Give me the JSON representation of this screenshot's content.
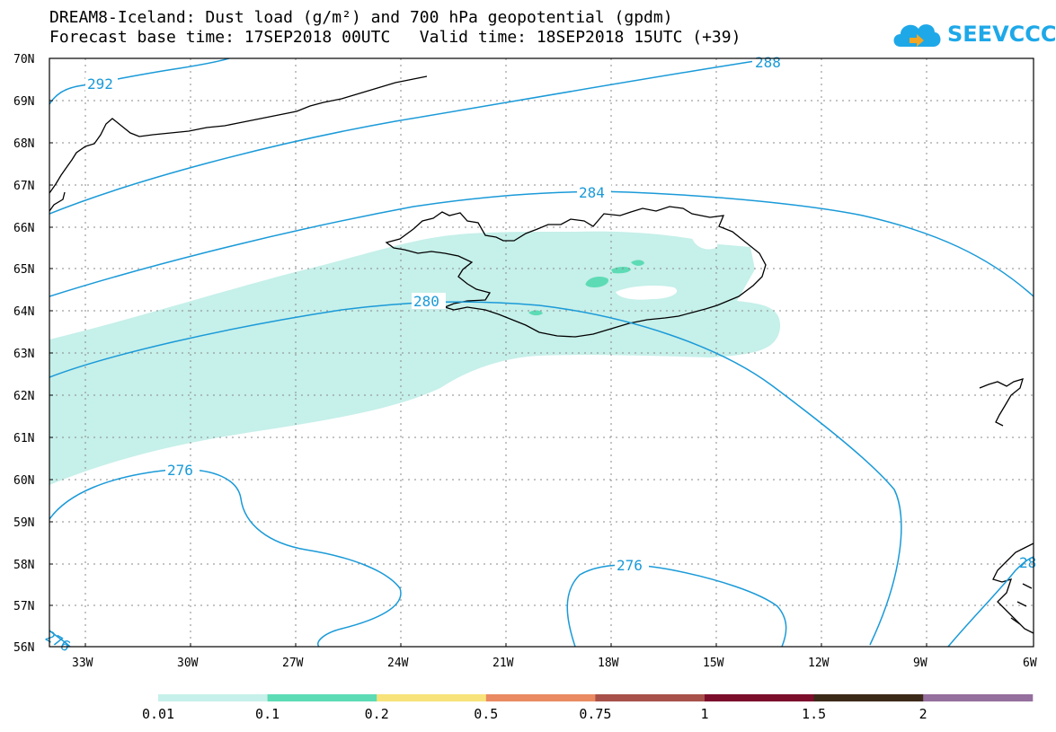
{
  "title_line1": "DREAM8-Iceland: Dust load (g/m²) and 700 hPa geopotential (gpdm)",
  "title_line2": "Forecast base time: 17SEP2018 00UTC   Valid time: 18SEP2018 15UTC (+39)",
  "logo_text": "SEEVCCC",
  "lat_labels": [
    "70N",
    "69N",
    "68N",
    "67N",
    "66N",
    "65N",
    "64N",
    "63N",
    "62N",
    "61N",
    "60N",
    "59N",
    "58N",
    "57N",
    "56N"
  ],
  "lon_labels": [
    "33W",
    "30W",
    "27W",
    "24W",
    "21W",
    "18W",
    "15W",
    "12W",
    "9W",
    "6W"
  ],
  "contour_labels": [
    "292",
    "288",
    "284",
    "280",
    "276",
    "276",
    "276",
    "28"
  ],
  "legend": {
    "labels": [
      "0.01",
      "0.1",
      "0.2",
      "0.5",
      "0.75",
      "1",
      "1.5",
      "2"
    ],
    "colors": [
      "#c6f0ea",
      "#5ddbb5",
      "#f7e37a",
      "#e98a62",
      "#a8514a",
      "#7c0e2c",
      "#3c2a19",
      "#956f9d"
    ]
  },
  "colors": {
    "contour": "#1a9ad8",
    "dust_low": "#c6f0ea",
    "dust_mid": "#5ddbb5"
  }
}
